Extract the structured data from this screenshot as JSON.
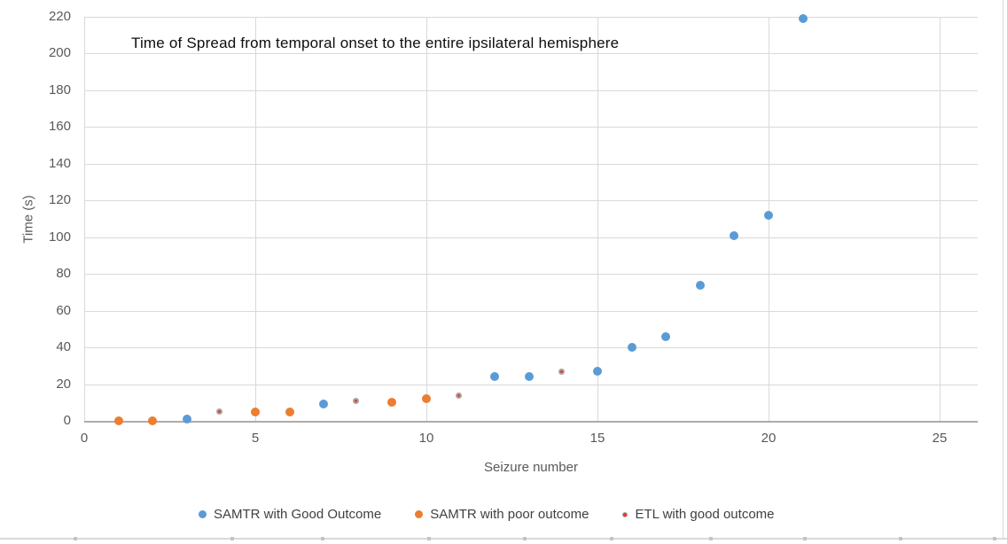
{
  "chart_data": {
    "type": "scatter",
    "title": "Time of Spread from temporal onset to the entire ipsilateral hemisphere",
    "xlabel": "Seizure number",
    "ylabel": "Time (s)",
    "xlim": [
      0,
      26.1
    ],
    "ylim": [
      0,
      220
    ],
    "x_ticks": [
      0,
      5,
      10,
      15,
      20,
      25
    ],
    "y_ticks": [
      0,
      20,
      40,
      60,
      80,
      100,
      120,
      140,
      160,
      180,
      200,
      220
    ],
    "grid": true,
    "legend_position": "bottom",
    "series": [
      {
        "name": "SAMTR with Good Outcome",
        "color": "#5B9BD5",
        "marker_border": null,
        "points": [
          [
            3,
            1
          ],
          [
            7,
            9
          ],
          [
            12,
            24
          ],
          [
            13,
            24
          ],
          [
            15,
            27
          ],
          [
            16,
            40
          ],
          [
            17,
            46
          ],
          [
            18,
            74
          ],
          [
            19,
            101
          ],
          [
            20,
            112
          ],
          [
            21,
            219
          ]
        ]
      },
      {
        "name": "SAMTR with poor outcome",
        "color": "#ED7D31",
        "marker_border": null,
        "points": [
          [
            1,
            0
          ],
          [
            2,
            0
          ],
          [
            5,
            5
          ],
          [
            6,
            5
          ],
          [
            9,
            10
          ],
          [
            10,
            12
          ]
        ]
      },
      {
        "name": "ETL with good outcome",
        "color": "#E8392B",
        "marker_border": "#A6A6A6",
        "points": [
          [
            4,
            4
          ],
          [
            8,
            10
          ],
          [
            11,
            13
          ],
          [
            14,
            26
          ]
        ]
      }
    ],
    "colors": {
      "gridline": "#d9d9d9",
      "axis_line": "#acacac",
      "tick_text": "#595959",
      "legend_text": "#404040",
      "title_text": "#0d0d0d"
    }
  }
}
